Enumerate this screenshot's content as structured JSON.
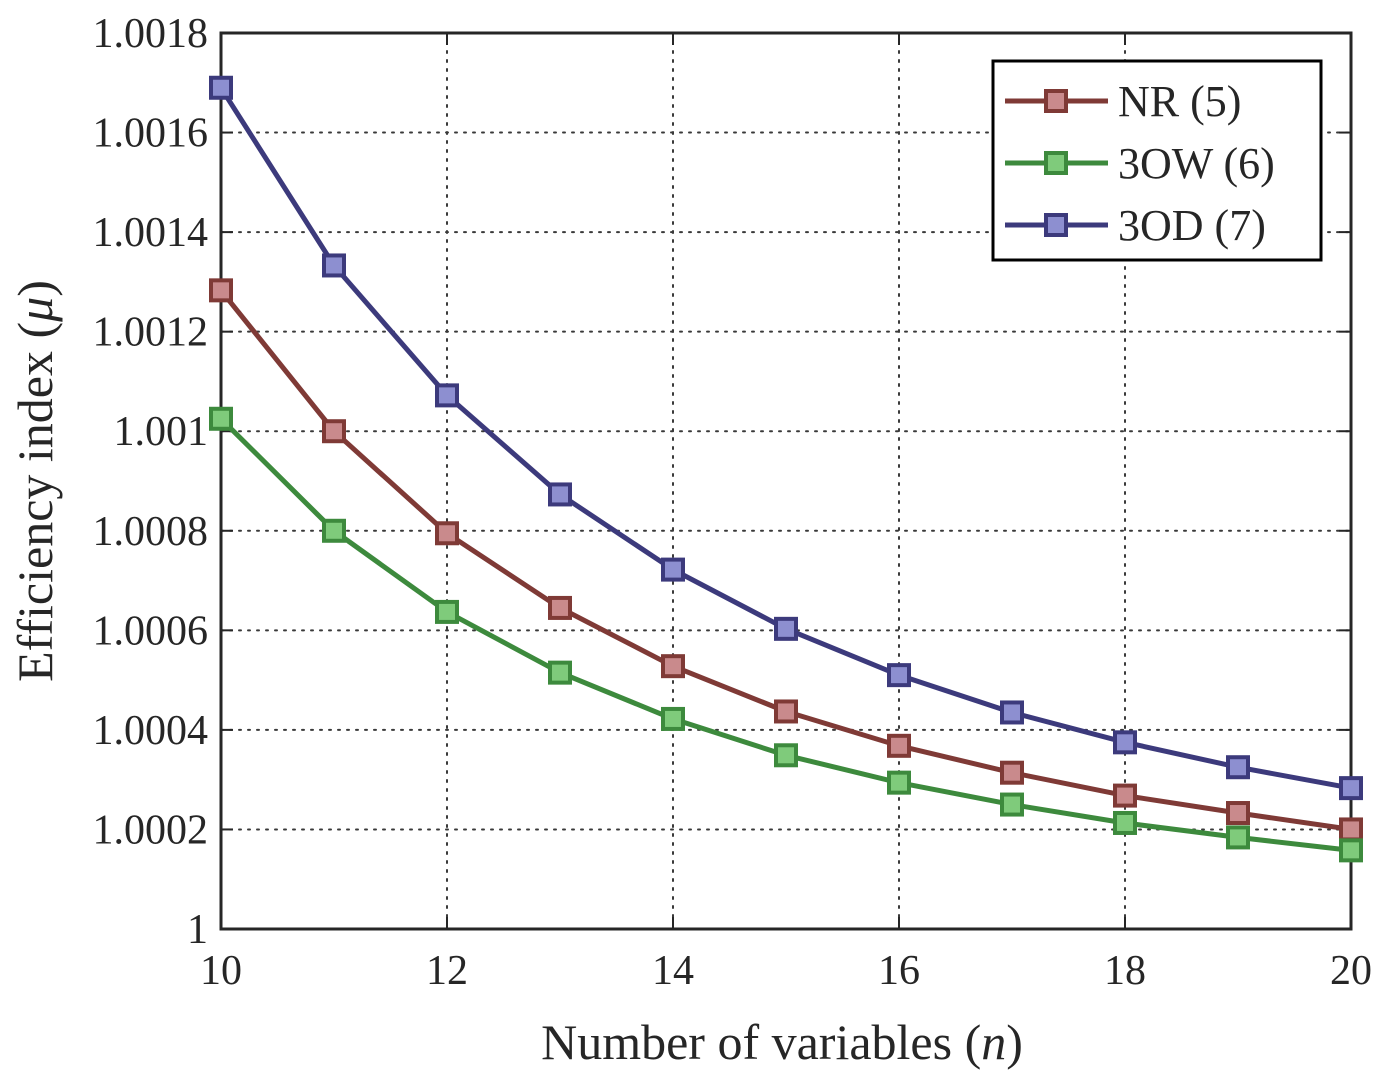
{
  "chart_data": {
    "type": "line",
    "title": "",
    "xlabel": {
      "prefix": "Number of variables (",
      "var": "n",
      "suffix": ")"
    },
    "ylabel": {
      "prefix": "Efficiency index (",
      "var": "μ",
      "suffix": ")"
    },
    "xlim": [
      10,
      20
    ],
    "ylim": [
      1,
      1.0018
    ],
    "xticks": [
      10,
      12,
      14,
      16,
      18,
      20
    ],
    "xtick_labels": [
      "10",
      "12",
      "14",
      "16",
      "18",
      "20"
    ],
    "yticks": [
      1,
      1.0002,
      1.0004,
      1.0006,
      1.0008,
      1.001,
      1.0012,
      1.0014,
      1.0016,
      1.0018
    ],
    "ytick_labels": [
      "1",
      "1.0002",
      "1.0004",
      "1.0006",
      "1.0008",
      "1.001",
      "1.0012",
      "1.0014",
      "1.0016",
      "1.0018"
    ],
    "grid": true,
    "legend_position": "top-right",
    "x": [
      10,
      11,
      12,
      13,
      14,
      15,
      16,
      17,
      18,
      19,
      20
    ],
    "series": [
      {
        "name": "NR (5)",
        "line_color": "#7f3a36",
        "marker_color": "#c98a8c",
        "values": [
          1.001283,
          1.001,
          1.000795,
          1.000645,
          1.000528,
          1.000437,
          1.000368,
          1.000314,
          1.000268,
          1.000233,
          1.0002
        ]
      },
      {
        "name": "3OW (6)",
        "line_color": "#3d8a3d",
        "marker_color": "#7fcb7b",
        "values": [
          1.001025,
          1.0008,
          1.000637,
          1.000515,
          1.000422,
          1.000349,
          1.000294,
          1.00025,
          1.000213,
          1.000184,
          1.000158
        ]
      },
      {
        "name": "3OD (7)",
        "line_color": "#3c3a7c",
        "marker_color": "#8d8fd0",
        "values": [
          1.00169,
          1.001333,
          1.001072,
          1.000873,
          1.000722,
          1.000603,
          1.00051,
          1.000435,
          1.000375,
          1.000325,
          1.000283
        ]
      }
    ]
  }
}
